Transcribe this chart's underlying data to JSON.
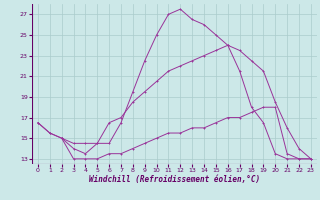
{
  "xlabel": "Windchill (Refroidissement éolien,°C)",
  "bg_color": "#cce8e8",
  "grid_color": "#aacccc",
  "line_color": "#993399",
  "xlim": [
    -0.5,
    23.5
  ],
  "ylim": [
    12.5,
    28.0
  ],
  "yticks": [
    13,
    15,
    17,
    19,
    21,
    23,
    25,
    27
  ],
  "xticks": [
    0,
    1,
    2,
    3,
    4,
    5,
    6,
    7,
    8,
    9,
    10,
    11,
    12,
    13,
    14,
    15,
    16,
    17,
    18,
    19,
    20,
    21,
    22,
    23
  ],
  "line1_x": [
    0,
    1,
    2,
    3,
    4,
    5,
    6,
    7,
    8,
    9,
    10,
    11,
    12,
    13,
    14,
    15,
    16,
    17,
    18,
    19,
    20,
    21,
    22,
    23
  ],
  "line1_y": [
    16.5,
    15.5,
    15.0,
    14.0,
    13.5,
    14.5,
    16.5,
    17.0,
    18.5,
    19.5,
    20.5,
    21.5,
    22.0,
    22.5,
    23.0,
    23.5,
    24.0,
    21.5,
    18.0,
    16.5,
    13.5,
    13.0,
    13.0,
    13.0
  ],
  "line2_x": [
    0,
    1,
    2,
    3,
    4,
    5,
    6,
    7,
    8,
    9,
    10,
    11,
    12,
    13,
    14,
    15,
    16,
    17,
    18,
    19,
    20,
    21,
    22,
    23
  ],
  "line2_y": [
    16.5,
    15.5,
    15.0,
    14.5,
    14.5,
    14.5,
    14.5,
    16.5,
    19.5,
    22.5,
    25.0,
    27.0,
    27.5,
    26.5,
    26.0,
    25.0,
    24.0,
    23.5,
    22.5,
    21.5,
    18.5,
    16.0,
    14.0,
    13.0
  ],
  "line3_x": [
    2,
    3,
    4,
    5,
    6,
    7,
    8,
    9,
    10,
    11,
    12,
    13,
    14,
    15,
    16,
    17,
    18,
    19,
    20,
    21,
    22,
    23
  ],
  "line3_y": [
    15.0,
    13.0,
    13.0,
    13.0,
    13.5,
    13.5,
    14.0,
    14.5,
    15.0,
    15.5,
    15.5,
    16.0,
    16.0,
    16.5,
    17.0,
    17.0,
    17.5,
    18.0,
    18.0,
    13.5,
    13.0,
    13.0
  ]
}
